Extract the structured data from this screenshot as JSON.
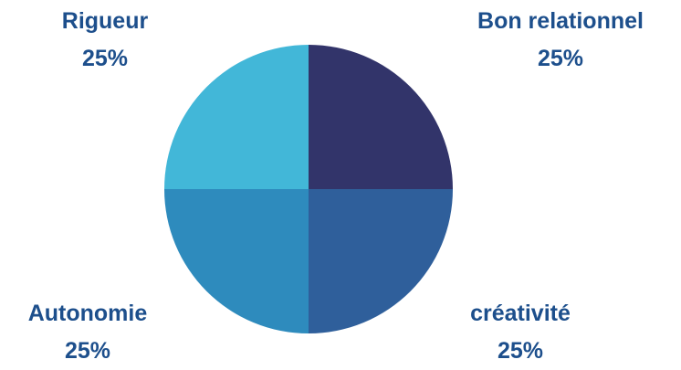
{
  "chart_data": {
    "type": "pie",
    "title": "",
    "slices": [
      {
        "label": "Bon relationnel",
        "value": 25,
        "display": "25%",
        "color": "#32346a"
      },
      {
        "label": "créativité",
        "value": 25,
        "display": "25%",
        "color": "#2f5f9b"
      },
      {
        "label": "Autonomie",
        "value": 25,
        "display": "25%",
        "color": "#2e8bbd"
      },
      {
        "label": "Rigueur",
        "value": 25,
        "display": "25%",
        "color": "#42b7d8"
      }
    ],
    "start_angle": "12 o'clock",
    "direction": "clockwise",
    "label_color": "#1d4f8c",
    "legend": "none"
  }
}
